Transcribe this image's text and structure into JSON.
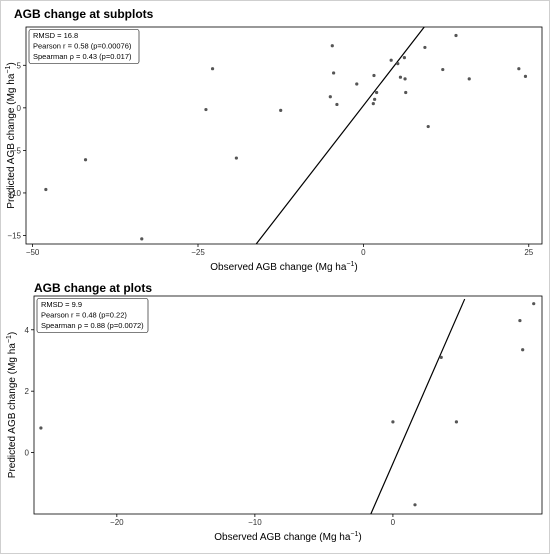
{
  "chart_data": [
    {
      "type": "scatter",
      "title": "AGB change at subplots",
      "xlabel": "Observed AGB change (Mg ha",
      "ylabel": "Predicted AGB change (Mg ha",
      "unit_exponent": "−1",
      "xlim": [
        -51,
        27
      ],
      "ylim": [
        -16,
        9.5
      ],
      "xticks": [
        -50,
        -25,
        0,
        25
      ],
      "xtick_labels": [
        "−50",
        "−25",
        "0",
        "25"
      ],
      "yticks": [
        -15,
        -10,
        -5,
        0,
        5
      ],
      "ytick_labels": [
        "−15",
        "−10",
        "−5",
        "0",
        "5"
      ],
      "stats": [
        "RMSD = 16.8",
        "Pearson r = 0.58 (p=0.00076)",
        "Spearman ρ = 0.43 (p=0.017)"
      ],
      "line": {
        "x": [
          -16.2,
          9.2
        ],
        "y": [
          -16,
          9.5
        ]
      },
      "points": [
        {
          "x": -48,
          "y": -9.6
        },
        {
          "x": -42,
          "y": -6.1
        },
        {
          "x": -33.5,
          "y": -15.4
        },
        {
          "x": -23.8,
          "y": -0.2
        },
        {
          "x": -22.8,
          "y": 4.6
        },
        {
          "x": -19.2,
          "y": -5.9
        },
        {
          "x": -12.5,
          "y": -0.3
        },
        {
          "x": -5,
          "y": 1.3
        },
        {
          "x": -4.7,
          "y": 7.3
        },
        {
          "x": -4.5,
          "y": 4.1
        },
        {
          "x": -4,
          "y": 0.4
        },
        {
          "x": -1,
          "y": 2.8
        },
        {
          "x": 1.5,
          "y": 0.5
        },
        {
          "x": 1.6,
          "y": 3.8
        },
        {
          "x": 1.7,
          "y": 1
        },
        {
          "x": 2,
          "y": 1.8
        },
        {
          "x": 4.2,
          "y": 5.6
        },
        {
          "x": 5.2,
          "y": 5.2
        },
        {
          "x": 5.6,
          "y": 3.6
        },
        {
          "x": 6.2,
          "y": 5.9
        },
        {
          "x": 6.3,
          "y": 3.4
        },
        {
          "x": 6.4,
          "y": 1.8
        },
        {
          "x": 9.3,
          "y": 7.1
        },
        {
          "x": 9.8,
          "y": -2.2
        },
        {
          "x": 12,
          "y": 4.5
        },
        {
          "x": 14,
          "y": 8.5
        },
        {
          "x": 16,
          "y": 3.4
        },
        {
          "x": 23.5,
          "y": 4.6
        },
        {
          "x": 24.5,
          "y": 3.7
        }
      ]
    },
    {
      "type": "scatter",
      "title": "AGB change at plots",
      "xlabel": "Observed AGB change (Mg ha",
      "ylabel": "Predicted AGB change (Mg ha",
      "unit_exponent": "−1",
      "xlim": [
        -26,
        10.8
      ],
      "ylim": [
        -2.0,
        5.1
      ],
      "xticks": [
        -20,
        -10,
        0
      ],
      "xtick_labels": [
        "−20",
        "−10",
        "0"
      ],
      "yticks": [
        0,
        2,
        4
      ],
      "ytick_labels": [
        "0",
        "2",
        "4"
      ],
      "stats": [
        "RMSD = 9.9",
        "Pearson r = 0.48 (p=0.22)",
        "Spearman ρ = 0.88 (p=0.0072)"
      ],
      "line": {
        "x": [
          -1.6,
          5.2
        ],
        "y": [
          -2.0,
          5.0
        ]
      },
      "points": [
        {
          "x": -25.5,
          "y": 0.8
        },
        {
          "x": 0,
          "y": 1.0
        },
        {
          "x": 1.6,
          "y": -1.7
        },
        {
          "x": 3.5,
          "y": 3.1
        },
        {
          "x": 4.6,
          "y": 1.0
        },
        {
          "x": 9.2,
          "y": 4.3
        },
        {
          "x": 9.4,
          "y": 3.35
        },
        {
          "x": 10.2,
          "y": 4.85
        }
      ]
    }
  ]
}
